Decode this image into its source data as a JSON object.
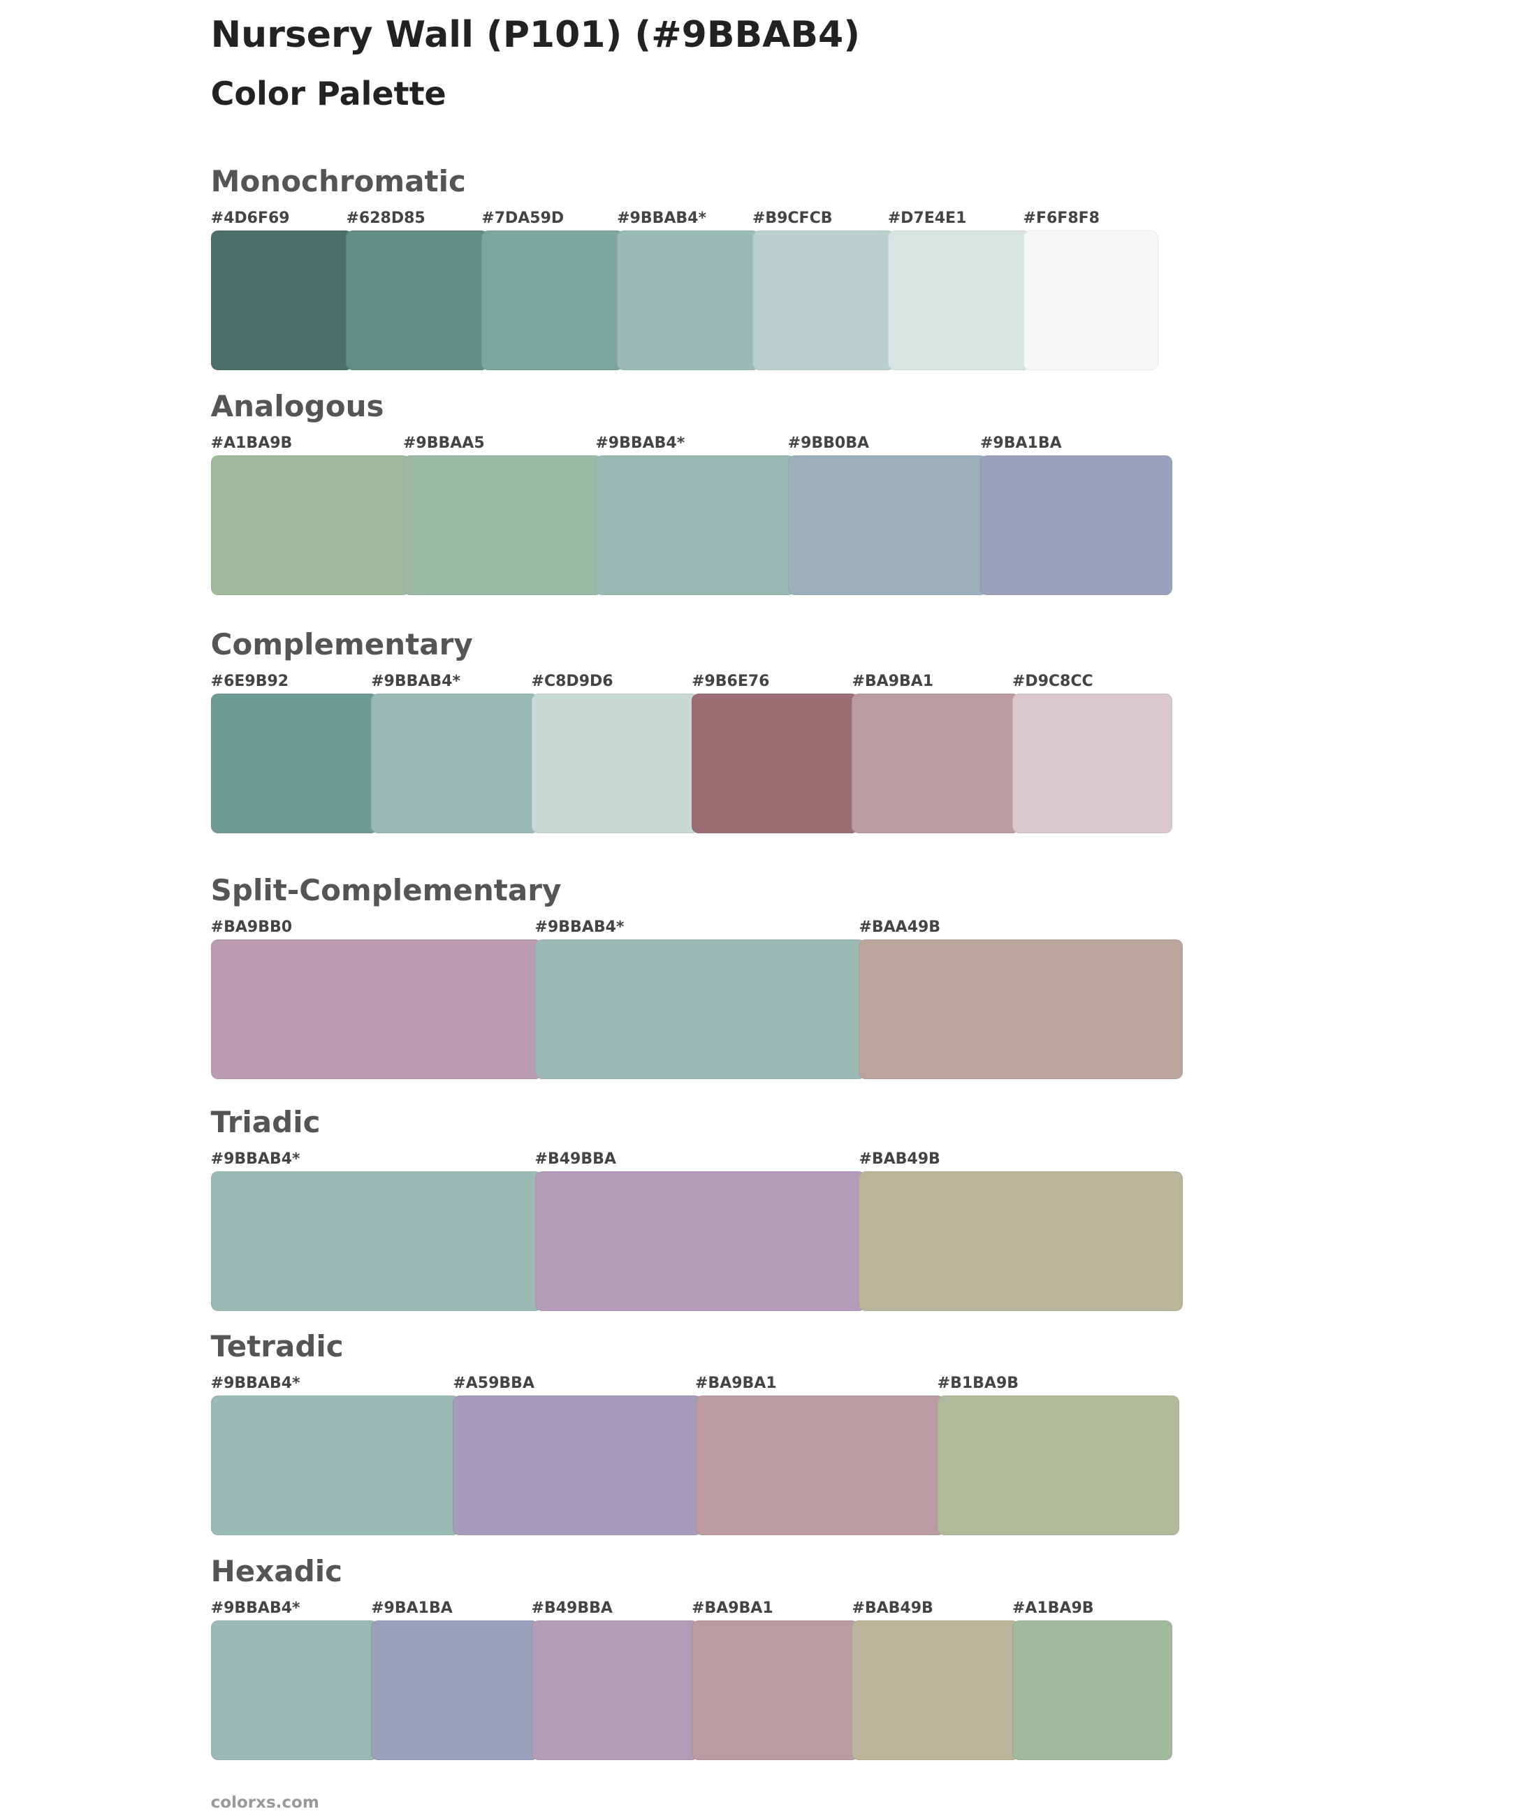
{
  "header": {
    "title": "Nursery Wall (P101) (#9BBAB4)",
    "subtitle": "Color Palette"
  },
  "sections": [
    {
      "name": "Monochromatic",
      "swatches": [
        {
          "label": "#4D6F69",
          "color": "#4D6F69"
        },
        {
          "label": "#628D85",
          "color": "#628D85"
        },
        {
          "label": "#7DA59D",
          "color": "#7DA59D"
        },
        {
          "label": "#9BBAB4*",
          "color": "#9BBAB4"
        },
        {
          "label": "#B9CFCB",
          "color": "#B9CFCB"
        },
        {
          "label": "#D7E4E1",
          "color": "#D7E4E1"
        },
        {
          "label": "#F6F8F8",
          "color": "#F6F8F8"
        }
      ]
    },
    {
      "name": "Analogous",
      "swatches": [
        {
          "label": "#A1BA9B",
          "color": "#A1BA9B"
        },
        {
          "label": "#9BBAA5",
          "color": "#9BBAA5"
        },
        {
          "label": "#9BBAB4*",
          "color": "#9BBAB4"
        },
        {
          "label": "#9BB0BA",
          "color": "#9BB0BA"
        },
        {
          "label": "#9BA1BA",
          "color": "#9BA1BA"
        }
      ]
    },
    {
      "name": "Complementary",
      "swatches": [
        {
          "label": "#6E9B92",
          "color": "#6E9B92"
        },
        {
          "label": "#9BBAB4*",
          "color": "#9BBAB4"
        },
        {
          "label": "#C8D9D6",
          "color": "#C8D9D6"
        },
        {
          "label": "#9B6E76",
          "color": "#9B6E76"
        },
        {
          "label": "#BA9BA1",
          "color": "#BA9BA1"
        },
        {
          "label": "#D9C8CC",
          "color": "#D9C8CC"
        }
      ]
    },
    {
      "name": "Split-Complementary",
      "swatches": [
        {
          "label": "#BA9BB0",
          "color": "#BA9BB0"
        },
        {
          "label": "#9BBAB4*",
          "color": "#9BBAB4"
        },
        {
          "label": "#BAA49B",
          "color": "#BAA49B"
        }
      ]
    },
    {
      "name": "Triadic",
      "swatches": [
        {
          "label": "#9BBAB4*",
          "color": "#9BBAB4"
        },
        {
          "label": "#B49BBA",
          "color": "#B49BBA"
        },
        {
          "label": "#BAB49B",
          "color": "#BAB49B"
        }
      ]
    },
    {
      "name": "Tetradic",
      "swatches": [
        {
          "label": "#9BBAB4*",
          "color": "#9BBAB4"
        },
        {
          "label": "#A59BBA",
          "color": "#A59BBA"
        },
        {
          "label": "#BA9BA1",
          "color": "#BA9BA1"
        },
        {
          "label": "#B1BA9B",
          "color": "#B1BA9B"
        }
      ]
    },
    {
      "name": "Hexadic",
      "swatches": [
        {
          "label": "#9BBAB4*",
          "color": "#9BBAB4"
        },
        {
          "label": "#9BA1BA",
          "color": "#9BA1BA"
        },
        {
          "label": "#B49BBA",
          "color": "#B49BBA"
        },
        {
          "label": "#BA9BA1",
          "color": "#BA9BA1"
        },
        {
          "label": "#BAB49B",
          "color": "#BAB49B"
        },
        {
          "label": "#A1BA9B",
          "color": "#A1BA9B"
        }
      ]
    }
  ],
  "footer": "colorxs.com"
}
